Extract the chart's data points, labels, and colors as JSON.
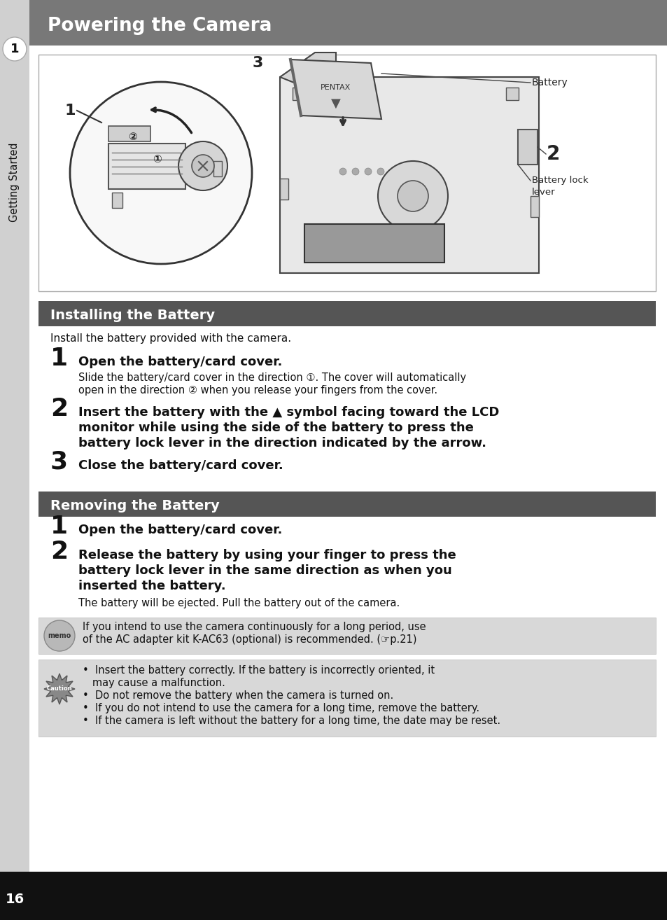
{
  "page_bg": "#e0e0e0",
  "content_bg": "#ffffff",
  "header_bg": "#787878",
  "header_text": "Powering the Camera",
  "header_text_color": "#ffffff",
  "section1_bg": "#555555",
  "section1_text": "Installing the Battery",
  "section2_bg": "#555555",
  "section2_text": "Removing the Battery",
  "sidebar_bg": "#d0d0d0",
  "sidebar_number": "1",
  "sidebar_label": "Getting Started",
  "bottom_bar_bg": "#111111",
  "bottom_bar_text": "16",
  "intro_text": "Install the battery provided with the camera.",
  "step1_num": "1",
  "step1_bold": "Open the battery/card cover.",
  "step1_detail_1": "Slide the battery/card cover in the direction ①. The cover will automatically",
  "step1_detail_2": "open in the direction ② when you release your fingers from the cover.",
  "step2_num": "2",
  "step2_bold_1": "Insert the battery with the ▲ symbol facing toward the LCD",
  "step2_bold_2": "monitor while using the side of the battery to press the",
  "step2_bold_3": "battery lock lever in the direction indicated by the arrow.",
  "step3_num": "3",
  "step3_bold": "Close the battery/card cover.",
  "rem_step1_num": "1",
  "rem_step1_bold": "Open the battery/card cover.",
  "rem_step2_num": "2",
  "rem_step2_bold_1": "Release the battery by using your finger to press the",
  "rem_step2_bold_2": "battery lock lever in the same direction as when you",
  "rem_step2_bold_3": "inserted the battery.",
  "rem_step2_detail": "The battery will be ejected. Pull the battery out of the camera.",
  "memo_bg": "#d8d8d8",
  "memo_text_1": "If you intend to use the camera continuously for a long period, use",
  "memo_text_2": "of the AC adapter kit K-AC63 (optional) is recommended. (☞p.21)",
  "caution_bg": "#d8d8d8",
  "caution_line1": "Insert the battery correctly. If the battery is incorrectly oriented, it",
  "caution_line2": "   may cause a malfunction.",
  "caution_line3": "Do not remove the battery when the camera is turned on.",
  "caution_line4": "If you do not intend to use the camera for a long time, remove the battery.",
  "caution_line5": "If the camera is left without the battery for a long time, the date may be reset."
}
